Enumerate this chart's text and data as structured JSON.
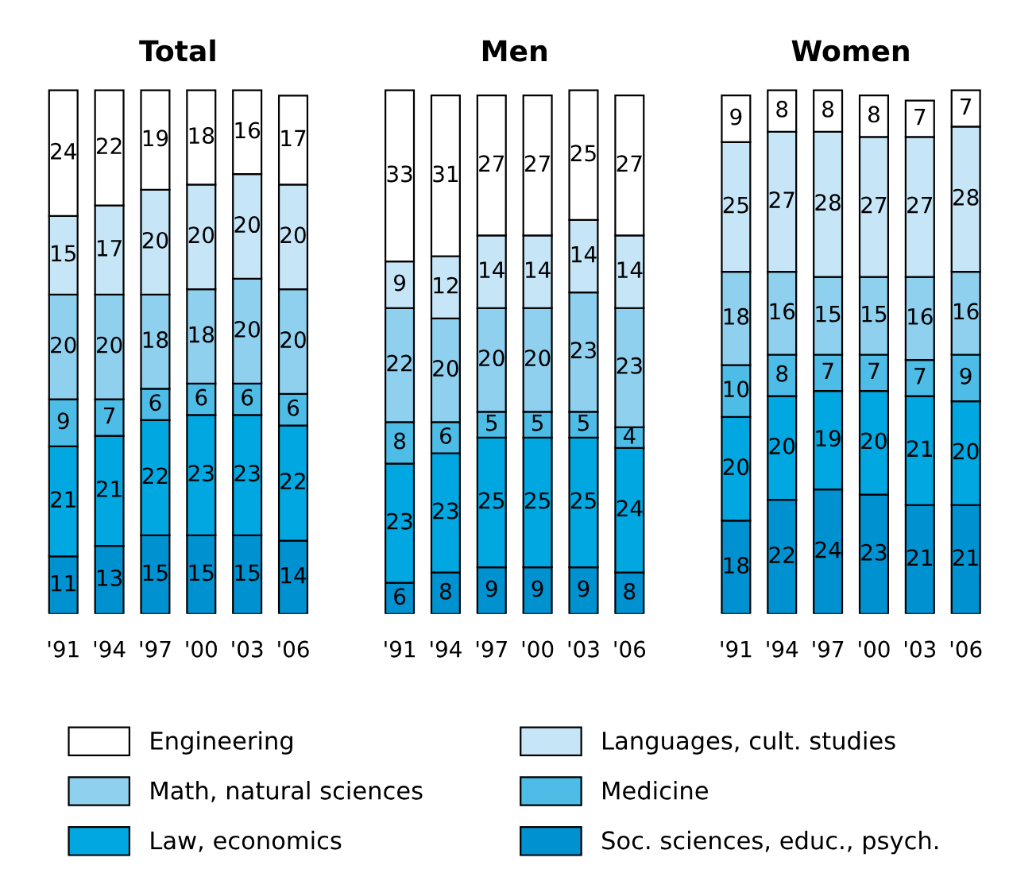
{
  "chart_data": [
    {
      "type": "bar",
      "title": "Total",
      "stacked": true,
      "data_labels": true,
      "tick_labels": "x",
      "grid": false,
      "legend": "bottom",
      "categories": [
        "'91",
        "'94",
        "'97",
        "'00",
        "'03",
        "'06"
      ],
      "series": [
        {
          "name": "Soc. sciences, educ., psych.",
          "color": "#0092d0",
          "values": [
            11,
            13,
            15,
            15,
            15,
            14
          ]
        },
        {
          "name": "Law, economics",
          "color": "#00a7e0",
          "values": [
            21,
            21,
            22,
            23,
            23,
            22
          ]
        },
        {
          "name": "Medicine",
          "color": "#4dbde8",
          "values": [
            9,
            7,
            6,
            6,
            6,
            6
          ]
        },
        {
          "name": "Math, natural sciences",
          "color": "#8fd0ef",
          "values": [
            20,
            20,
            18,
            18,
            20,
            20
          ]
        },
        {
          "name": "Languages, cult. studies",
          "color": "#c6e6f8",
          "values": [
            15,
            17,
            20,
            20,
            20,
            20
          ]
        },
        {
          "name": "Engineering",
          "color": "#ffffff",
          "values": [
            24,
            22,
            19,
            18,
            16,
            17
          ]
        }
      ]
    },
    {
      "type": "bar",
      "title": "Men",
      "stacked": true,
      "data_labels": true,
      "tick_labels": "x",
      "grid": false,
      "categories": [
        "'91",
        "'94",
        "'97",
        "'00",
        "'03",
        "'06"
      ],
      "series": [
        {
          "color": "#0092d0",
          "values": [
            6,
            8,
            9,
            9,
            9,
            8
          ]
        },
        {
          "color": "#00a7e0",
          "values": [
            23,
            23,
            25,
            25,
            25,
            24
          ]
        },
        {
          "color": "#4dbde8",
          "values": [
            8,
            6,
            5,
            5,
            5,
            4
          ]
        },
        {
          "color": "#8fd0ef",
          "values": [
            22,
            20,
            20,
            20,
            23,
            23
          ]
        },
        {
          "color": "#c6e6f8",
          "values": [
            9,
            12,
            14,
            14,
            14,
            14
          ]
        },
        {
          "color": "#ffffff",
          "values": [
            33,
            31,
            27,
            27,
            25,
            27
          ]
        }
      ]
    },
    {
      "type": "bar",
      "title": "Women",
      "stacked": true,
      "data_labels": true,
      "tick_labels": "x",
      "grid": false,
      "categories": [
        "'91",
        "'94",
        "'97",
        "'00",
        "'03",
        "'06"
      ],
      "series": [
        {
          "color": "#0092d0",
          "values": [
            18,
            22,
            24,
            23,
            21,
            21
          ]
        },
        {
          "color": "#00a7e0",
          "values": [
            20,
            20,
            19,
            20,
            21,
            20
          ]
        },
        {
          "color": "#4dbde8",
          "values": [
            10,
            8,
            7,
            7,
            7,
            9
          ]
        },
        {
          "color": "#8fd0ef",
          "values": [
            18,
            16,
            15,
            15,
            16,
            16
          ]
        },
        {
          "color": "#c6e6f8",
          "values": [
            25,
            27,
            28,
            27,
            27,
            28
          ]
        },
        {
          "color": "#ffffff",
          "values": [
            9,
            8,
            8,
            8,
            7,
            7
          ]
        }
      ]
    }
  ]
}
